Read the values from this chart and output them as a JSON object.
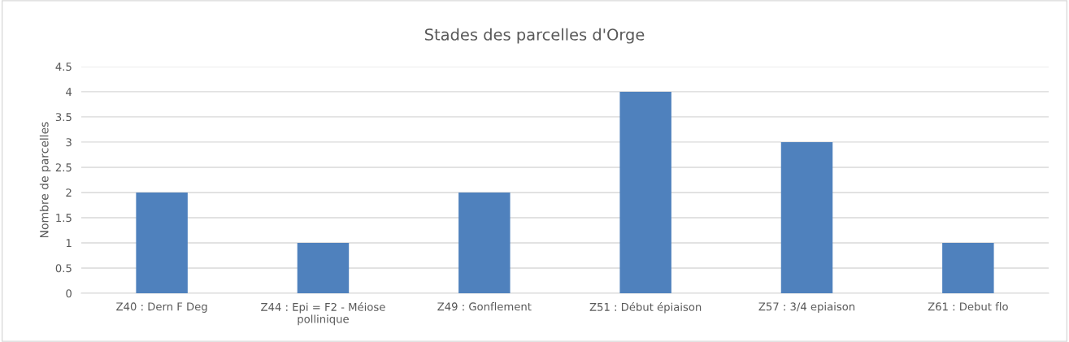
{
  "chart_data": {
    "type": "bar",
    "title": "Stades des parcelles d'Orge",
    "ylabel": "Nombre de parcelles",
    "categories": [
      "Z40 : Dern F Deg",
      "Z44 : Epi = F2 - Méiose\npollinique",
      "Z49 : Gonflement",
      "Z51 : Début épiaison",
      "Z57 : 3/4 epiaison",
      "Z61 : Debut flo"
    ],
    "values": [
      2,
      1,
      2,
      4,
      3,
      1
    ],
    "color": "#4f81bd",
    "ylim": [
      0,
      4.5
    ],
    "yticks": [
      0,
      0.5,
      1,
      1.5,
      2,
      2.5,
      3,
      3.5,
      4,
      4.5
    ],
    "grid": "y",
    "legend": false
  }
}
